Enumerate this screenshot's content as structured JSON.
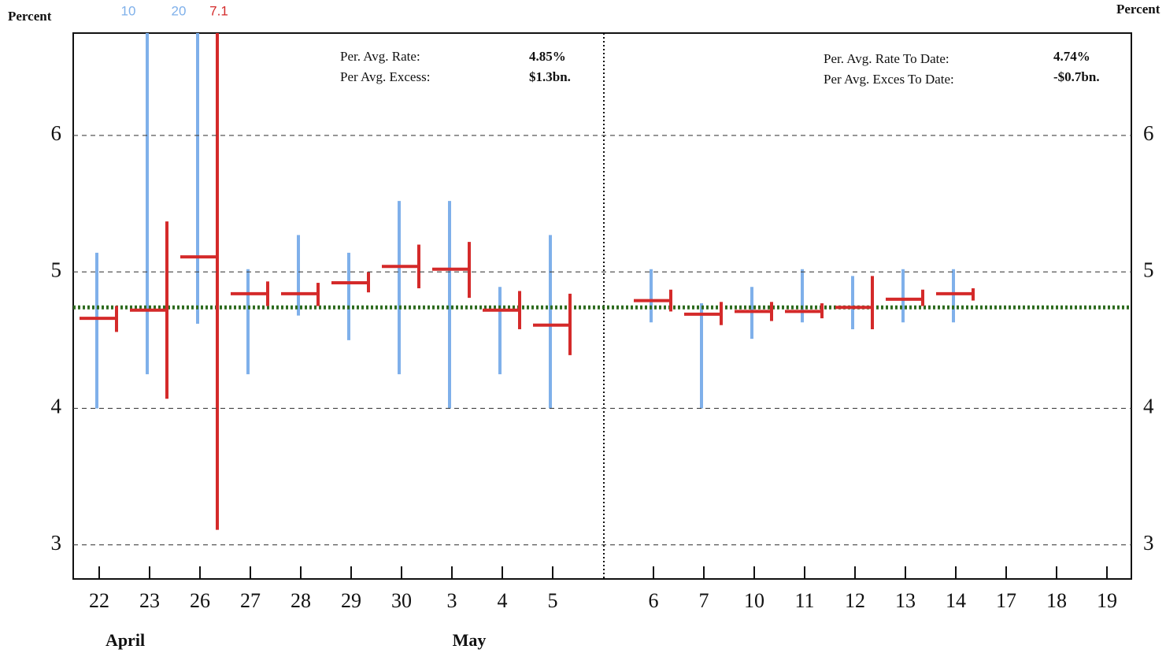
{
  "chart_data": {
    "type": "range",
    "y_label": "Percent",
    "categories": [
      "22",
      "23",
      "26",
      "27",
      "28",
      "29",
      "30",
      "3",
      "4",
      "5",
      null,
      "6",
      "7",
      "10",
      "11",
      "12",
      "13",
      "14",
      "17",
      "18",
      "19"
    ],
    "months": [
      "April",
      "May"
    ],
    "ylim": [
      2.75,
      6.75
    ],
    "yticks": [
      3,
      4,
      5,
      6
    ],
    "grid": true,
    "blue_range": {
      "color": "#7fb0ea",
      "low": [
        4.0,
        4.25,
        4.62,
        4.25,
        4.68,
        4.5,
        4.25,
        4.0,
        4.25,
        4.0,
        null,
        4.63,
        4.0,
        4.51,
        4.63,
        4.58,
        4.63,
        4.63,
        null,
        null,
        null
      ],
      "high": [
        5.14,
        10,
        20,
        5.02,
        5.27,
        5.14,
        5.52,
        5.52,
        4.89,
        5.27,
        null,
        5.02,
        4.77,
        4.89,
        5.02,
        4.97,
        5.02,
        5.02,
        null,
        null,
        null
      ]
    },
    "red_range": {
      "color": "#d42a2a",
      "low": [
        4.56,
        4.07,
        3.11,
        4.75,
        4.75,
        4.85,
        4.88,
        4.81,
        4.58,
        4.39,
        null,
        4.71,
        4.61,
        4.64,
        4.66,
        4.58,
        4.75,
        4.79,
        null,
        null,
        null
      ],
      "high": [
        4.75,
        5.37,
        7.1,
        4.93,
        4.92,
        5.0,
        5.2,
        5.22,
        4.86,
        4.84,
        null,
        4.87,
        4.78,
        4.78,
        4.77,
        4.97,
        4.87,
        4.88,
        null,
        null,
        null
      ],
      "average": [
        4.66,
        4.72,
        5.11,
        4.84,
        4.84,
        4.92,
        5.04,
        5.02,
        4.72,
        4.61,
        null,
        4.79,
        4.69,
        4.71,
        4.71,
        4.74,
        4.8,
        4.84,
        null,
        null,
        null
      ]
    },
    "reference_line": {
      "value": 4.74,
      "color": "#2e6b1f"
    },
    "annotations": {
      "left": [
        [
          "Per. Avg. Rate:",
          "4.85%"
        ],
        [
          "Per Avg. Excess:",
          "$1.3bn."
        ]
      ],
      "right": [
        [
          "Per. Avg. Rate To  Date:",
          "4.74%"
        ],
        [
          "Per Avg. Exces To Date:",
          "-$0.7bn."
        ]
      ]
    }
  }
}
